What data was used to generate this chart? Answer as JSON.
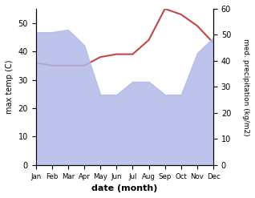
{
  "months": [
    "Jan",
    "Feb",
    "Mar",
    "Apr",
    "May",
    "Jun",
    "Jul",
    "Aug",
    "Sep",
    "Oct",
    "Nov",
    "Dec"
  ],
  "precipitation": [
    51,
    51,
    52,
    46,
    27,
    27,
    32,
    32,
    27,
    27,
    43,
    49
  ],
  "temperature": [
    36,
    35,
    35,
    35,
    38,
    39,
    39,
    44,
    55,
    53,
    49,
    43
  ],
  "precip_color": "#b3b9e8",
  "temp_color": "#c0464a",
  "ylabel_left": "max temp (C)",
  "ylabel_right": "med. precipitation (kg/m2)",
  "xlabel": "date (month)",
  "ylim_left": [
    0,
    55
  ],
  "ylim_right": [
    0,
    60
  ],
  "yticks_left": [
    0,
    10,
    20,
    30,
    40,
    50
  ],
  "yticks_right": [
    0,
    10,
    20,
    30,
    40,
    50,
    60
  ]
}
